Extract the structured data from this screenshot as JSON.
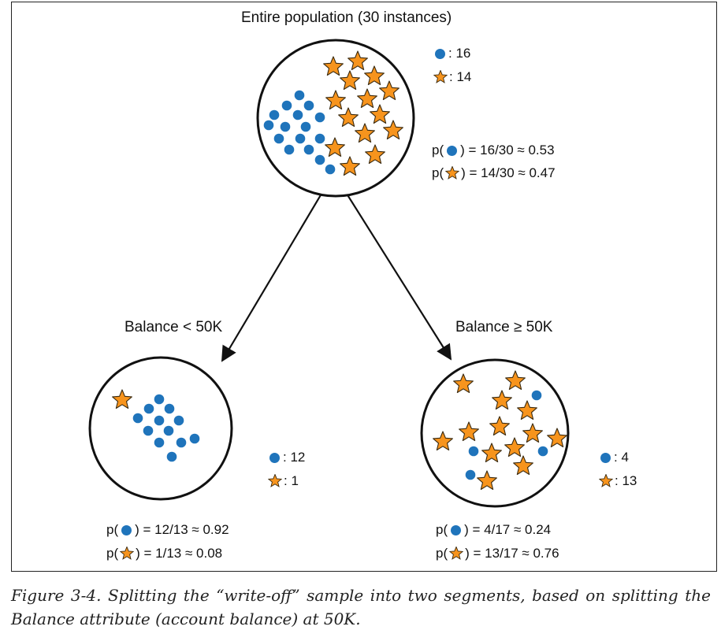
{
  "root": {
    "title": "Entire population (30 instances)",
    "legend": {
      "dot_label": ": 16",
      "star_label": ": 14"
    },
    "prob_dot": {
      "prefix": "p(",
      "suffix": ") = 16/30 ≈ 0.53"
    },
    "prob_star": {
      "prefix": "p(",
      "suffix": ") = 14/30 ≈ 0.47"
    },
    "dot_count": 16,
    "star_count": 14
  },
  "left": {
    "title": "Balance < 50K",
    "legend": {
      "dot_label": ": 12",
      "star_label": ": 1"
    },
    "prob_dot": {
      "prefix": "p(",
      "suffix": ") = 12/13 ≈ 0.92"
    },
    "prob_star": {
      "prefix": "p(",
      "suffix": ") = 1/13 ≈ 0.08"
    },
    "dot_count": 12,
    "star_count": 1
  },
  "right": {
    "title": "Balance ≥ 50K",
    "legend": {
      "dot_label": ": 4",
      "star_label": ": 13"
    },
    "prob_dot": {
      "prefix": "p(",
      "suffix": ") = 4/17 ≈ 0.24"
    },
    "prob_star": {
      "prefix": "p(",
      "suffix": ") = 13/17 ≈ 0.76"
    },
    "dot_count": 4,
    "star_count": 13
  },
  "caption": "Figure 3-4. Splitting the “write-off” sample into two segments, based on splitting the Balance attribute (account balance) at 50K.",
  "colors": {
    "dot": "#1f74bb",
    "star_fill": "#f7941d",
    "star_stroke": "#3a2a10",
    "line": "#111111"
  },
  "icons": {
    "dot": "blue-dot-icon",
    "star": "orange-star-icon"
  }
}
